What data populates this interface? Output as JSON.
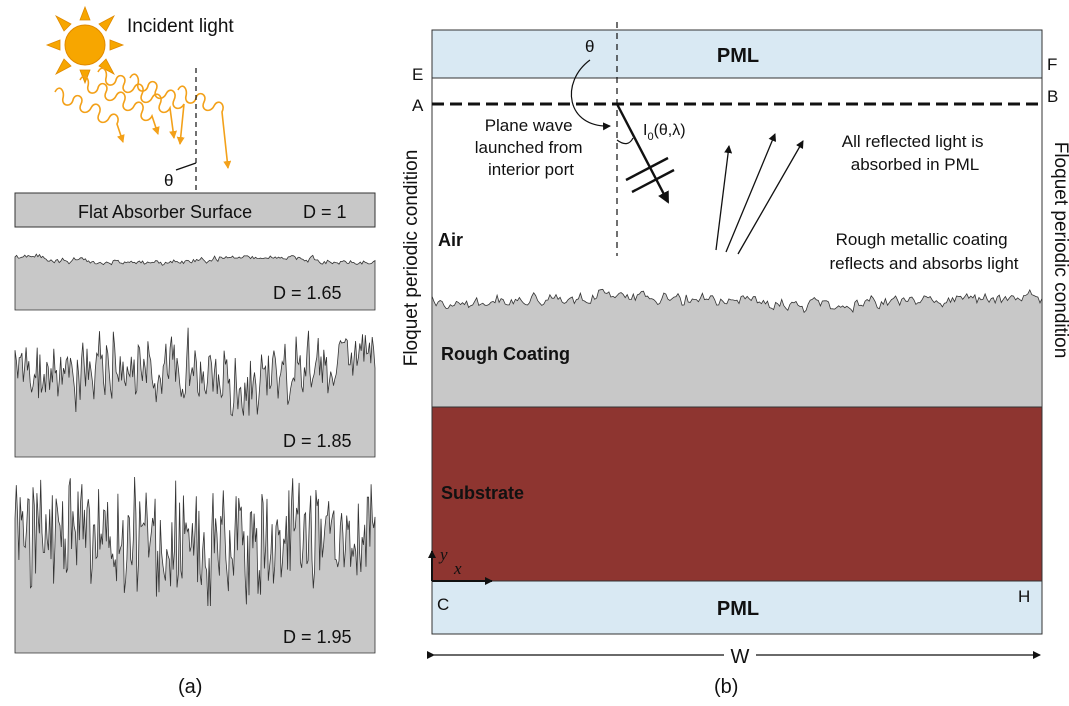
{
  "panel_a": {
    "incident_light": "Incident light",
    "theta": "θ",
    "flat_surface": "Flat Absorber Surface",
    "flat_d": "D = 1",
    "d1": "D = 1.65",
    "d2": "D = 1.85",
    "d3": "D = 1.95",
    "caption": "(a)"
  },
  "panel_b": {
    "pml_top": "PML",
    "pml_bottom": "PML",
    "theta": "θ",
    "corner_e": "E",
    "corner_f": "F",
    "corner_a": "A",
    "corner_b": "B",
    "corner_c": "C",
    "corner_h": "H",
    "plane_wave": [
      "Plane wave",
      "launched from",
      "interior port"
    ],
    "intensity": "I",
    "intensity_sub": "0",
    "intensity_args": "(θ,λ)",
    "reflected": [
      "All reflected light is",
      "absorbed in PML"
    ],
    "air": "Air",
    "coating_note": [
      "Rough metallic coating",
      "reflects and absorbs light"
    ],
    "rough_coating": "Rough Coating",
    "substrate": "Substrate",
    "axis_y": "y",
    "axis_x": "x",
    "left_condition": "Floquet periodic condition",
    "right_condition": "Floquet periodic condition",
    "width": "W",
    "caption": "(b)"
  },
  "colors": {
    "pml": "#d9e9f3",
    "gray": "#c8c8c8",
    "substrate": "#8e3530",
    "sun": "#f7a600",
    "ray": "#f3a11a"
  }
}
